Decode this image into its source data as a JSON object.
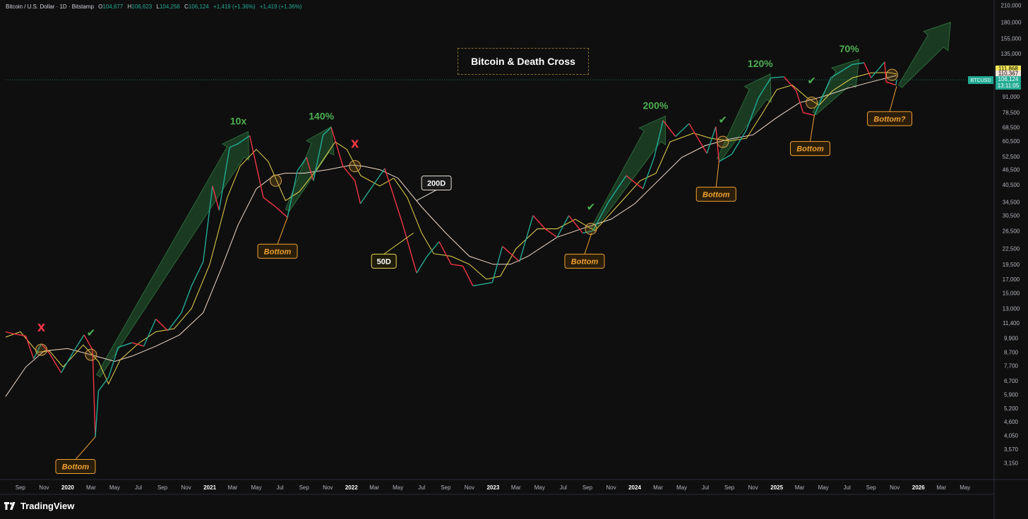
{
  "header": {
    "symbol": "Bitcoin / U.S. Dollar · 1D · Bitstamp",
    "open_label": "O",
    "open": "104,677",
    "high_label": "H",
    "high": "106,623",
    "low_label": "L",
    "low": "104,256",
    "close_label": "C",
    "close": "106,124",
    "change": "+1,419 (+1.36%)",
    "change2": "+1,419 (+1.36%)"
  },
  "chart_title": "Bitcoin & Death Cross",
  "brand": "TradingView",
  "price_tags": {
    "ma50": "111,868",
    "ma200": "110,367",
    "symbol": "BTCUSD",
    "last": "106,124",
    "countdown": "13:11:05"
  },
  "colors": {
    "background": "#0f0f0f",
    "ma50": "#e8d44d",
    "ma200": "#f2d9c9",
    "up": "#22ab94",
    "down": "#f23645",
    "annotation": "#f0a030",
    "gain": "#4caf50",
    "cross_x": "#f23645"
  },
  "chart_data": {
    "type": "line",
    "title": "Bitcoin & Death Cross",
    "y_scale": "log",
    "ylim": [
      3000,
      215000
    ],
    "y_ticks": [
      "210,000",
      "180,000",
      "155,000",
      "135,000",
      "115,000",
      "91,000",
      "78,500",
      "68,500",
      "60,500",
      "52,500",
      "46,500",
      "40,500",
      "34,500",
      "30,500",
      "26,500",
      "22,500",
      "19,500",
      "17,000",
      "15,000",
      "13,000",
      "11,400",
      "9,900",
      "8,700",
      "7,700",
      "6,700",
      "5,900",
      "5,200",
      "4,600",
      "4,050",
      "3,570",
      "3,150"
    ],
    "y_tick_values": [
      210000,
      180000,
      155000,
      135000,
      115000,
      91000,
      78500,
      68500,
      60500,
      52500,
      46500,
      40500,
      34500,
      30500,
      26500,
      22500,
      19500,
      17000,
      15000,
      13000,
      11400,
      9900,
      8700,
      7700,
      6700,
      5900,
      5200,
      4600,
      4050,
      3570,
      3150
    ],
    "x_ticks": [
      "Sep",
      "Nov",
      "2020",
      "Mar",
      "May",
      "Jul",
      "Sep",
      "Nov",
      "2021",
      "Mar",
      "May",
      "Jul",
      "Sep",
      "Nov",
      "2022",
      "Mar",
      "May",
      "Jul",
      "Sep",
      "Nov",
      "2023",
      "Mar",
      "May",
      "Jul",
      "Sep",
      "Nov",
      "2024",
      "Mar",
      "May",
      "Jul",
      "Sep",
      "Nov",
      "2025",
      "Mar",
      "May",
      "Jul",
      "Sep",
      "Nov",
      "2026",
      "Mar",
      "May"
    ],
    "x_tick_dates": [
      "2019-09-01",
      "2019-11-01",
      "2020-01-01",
      "2020-03-01",
      "2020-05-01",
      "2020-07-01",
      "2020-09-01",
      "2020-11-01",
      "2021-01-01",
      "2021-03-01",
      "2021-05-01",
      "2021-07-01",
      "2021-09-01",
      "2021-11-01",
      "2022-01-01",
      "2022-03-01",
      "2022-05-01",
      "2022-07-01",
      "2022-09-01",
      "2022-11-01",
      "2023-01-01",
      "2023-03-01",
      "2023-05-01",
      "2023-07-01",
      "2023-09-01",
      "2023-11-01",
      "2024-01-01",
      "2024-03-01",
      "2024-05-01",
      "2024-07-01",
      "2024-09-01",
      "2024-11-01",
      "2025-01-01",
      "2025-03-01",
      "2025-05-01",
      "2025-07-01",
      "2025-09-01",
      "2025-11-01",
      "2026-01-01",
      "2026-03-01",
      "2026-05-01"
    ],
    "xlim": [
      "2019-07-25",
      "2026-06-05"
    ],
    "series": [
      {
        "name": "Price",
        "points": [
          [
            "2019-07-25",
            10500
          ],
          [
            "2019-08-15",
            10300
          ],
          [
            "2019-09-15",
            10100
          ],
          [
            "2019-10-05",
            8200
          ],
          [
            "2019-10-25",
            9400
          ],
          [
            "2019-11-15",
            8600
          ],
          [
            "2019-12-15",
            7200
          ],
          [
            "2020-01-15",
            8700
          ],
          [
            "2020-02-12",
            10200
          ],
          [
            "2020-03-05",
            8900
          ],
          [
            "2020-03-12",
            4000
          ],
          [
            "2020-03-20",
            6100
          ],
          [
            "2020-04-15",
            6900
          ],
          [
            "2020-05-10",
            9100
          ],
          [
            "2020-06-15",
            9500
          ],
          [
            "2020-07-15",
            9200
          ],
          [
            "2020-08-15",
            11800
          ],
          [
            "2020-09-15",
            10600
          ],
          [
            "2020-10-20",
            12500
          ],
          [
            "2020-11-15",
            16000
          ],
          [
            "2020-12-15",
            20000
          ],
          [
            "2021-01-08",
            40000
          ],
          [
            "2021-01-25",
            32000
          ],
          [
            "2021-02-21",
            57000
          ],
          [
            "2021-03-15",
            59000
          ],
          [
            "2021-04-14",
            63500
          ],
          [
            "2021-05-19",
            36000
          ],
          [
            "2021-06-20",
            33000
          ],
          [
            "2021-07-20",
            30000
          ],
          [
            "2021-08-15",
            46000
          ],
          [
            "2021-09-07",
            52000
          ],
          [
            "2021-09-25",
            42000
          ],
          [
            "2021-10-20",
            64000
          ],
          [
            "2021-11-10",
            68500
          ],
          [
            "2021-12-10",
            48000
          ],
          [
            "2022-01-10",
            42000
          ],
          [
            "2022-01-24",
            34000
          ],
          [
            "2022-03-28",
            47000
          ],
          [
            "2022-05-12",
            28500
          ],
          [
            "2022-06-18",
            18000
          ],
          [
            "2022-07-15",
            21000
          ],
          [
            "2022-08-15",
            24000
          ],
          [
            "2022-09-15",
            19500
          ],
          [
            "2022-10-15",
            19200
          ],
          [
            "2022-11-10",
            16000
          ],
          [
            "2022-12-30",
            16500
          ],
          [
            "2023-01-25",
            23000
          ],
          [
            "2023-03-10",
            20000
          ],
          [
            "2023-04-14",
            30500
          ],
          [
            "2023-05-15",
            27000
          ],
          [
            "2023-06-15",
            25000
          ],
          [
            "2023-07-15",
            30500
          ],
          [
            "2023-08-20",
            26000
          ],
          [
            "2023-09-15",
            26500
          ],
          [
            "2023-10-25",
            34500
          ],
          [
            "2023-12-10",
            44000
          ],
          [
            "2024-01-22",
            39000
          ],
          [
            "2024-02-20",
            52000
          ],
          [
            "2024-03-14",
            73000
          ],
          [
            "2024-04-15",
            63000
          ],
          [
            "2024-05-20",
            71000
          ],
          [
            "2024-07-05",
            54000
          ],
          [
            "2024-07-28",
            69000
          ],
          [
            "2024-08-05",
            50000
          ],
          [
            "2024-09-07",
            53500
          ],
          [
            "2024-10-15",
            67000
          ],
          [
            "2024-11-15",
            90000
          ],
          [
            "2024-12-17",
            108000
          ],
          [
            "2025-01-20",
            109000
          ],
          [
            "2025-02-20",
            96000
          ],
          [
            "2025-03-10",
            78500
          ],
          [
            "2025-04-08",
            76500
          ],
          [
            "2025-05-20",
            108000
          ],
          [
            "2025-07-14",
            122000
          ],
          [
            "2025-08-14",
            124000
          ],
          [
            "2025-09-01",
            108000
          ],
          [
            "2025-10-06",
            125000
          ],
          [
            "2025-10-10",
            104000
          ],
          [
            "2025-11-04",
            101000
          ],
          [
            "2025-11-06",
            106124
          ]
        ]
      },
      {
        "name": "50D",
        "points": [
          [
            "2019-07-25",
            10000
          ],
          [
            "2019-09-01",
            10500
          ],
          [
            "2019-10-15",
            8700
          ],
          [
            "2019-11-15",
            8800
          ],
          [
            "2019-12-20",
            7600
          ],
          [
            "2020-02-10",
            9300
          ],
          [
            "2020-03-20",
            8000
          ],
          [
            "2020-04-15",
            6500
          ],
          [
            "2020-05-15",
            8100
          ],
          [
            "2020-06-30",
            9400
          ],
          [
            "2020-08-15",
            10500
          ],
          [
            "2020-10-01",
            10800
          ],
          [
            "2020-11-15",
            13000
          ],
          [
            "2021-01-01",
            19500
          ],
          [
            "2021-02-15",
            36000
          ],
          [
            "2021-03-20",
            48000
          ],
          [
            "2021-05-01",
            56000
          ],
          [
            "2021-06-01",
            50000
          ],
          [
            "2021-07-15",
            35000
          ],
          [
            "2021-08-20",
            38000
          ],
          [
            "2021-10-01",
            46000
          ],
          [
            "2021-11-20",
            60000
          ],
          [
            "2021-12-20",
            56000
          ],
          [
            "2022-01-25",
            44000
          ],
          [
            "2022-03-15",
            40000
          ],
          [
            "2022-04-20",
            43000
          ],
          [
            "2022-05-25",
            36000
          ],
          [
            "2022-07-01",
            26000
          ],
          [
            "2022-08-01",
            21500
          ],
          [
            "2022-09-15",
            21000
          ],
          [
            "2022-11-01",
            19500
          ],
          [
            "2022-12-15",
            17000
          ],
          [
            "2023-01-20",
            17500
          ],
          [
            "2023-03-01",
            22500
          ],
          [
            "2023-04-25",
            27000
          ],
          [
            "2023-06-15",
            27000
          ],
          [
            "2023-08-01",
            29500
          ],
          [
            "2023-09-20",
            26500
          ],
          [
            "2023-11-15",
            33000
          ],
          [
            "2024-01-15",
            42000
          ],
          [
            "2024-02-25",
            45000
          ],
          [
            "2024-04-01",
            60000
          ],
          [
            "2024-06-01",
            65000
          ],
          [
            "2024-07-15",
            62000
          ],
          [
            "2024-09-01",
            60500
          ],
          [
            "2024-10-15",
            62000
          ],
          [
            "2024-11-25",
            78000
          ],
          [
            "2025-01-01",
            97000
          ],
          [
            "2025-02-10",
            101000
          ],
          [
            "2025-03-20",
            90000
          ],
          [
            "2025-04-20",
            84000
          ],
          [
            "2025-05-25",
            96000
          ],
          [
            "2025-07-15",
            108000
          ],
          [
            "2025-09-01",
            113000
          ],
          [
            "2025-10-15",
            113500
          ],
          [
            "2025-11-06",
            111868
          ]
        ]
      },
      {
        "name": "200D",
        "points": [
          [
            "2019-07-25",
            5800
          ],
          [
            "2019-09-15",
            7600
          ],
          [
            "2019-11-01",
            8800
          ],
          [
            "2020-01-01",
            9000
          ],
          [
            "2020-03-01",
            8500
          ],
          [
            "2020-05-01",
            8000
          ],
          [
            "2020-06-15",
            8400
          ],
          [
            "2020-08-15",
            9200
          ],
          [
            "2020-10-15",
            10200
          ],
          [
            "2020-12-15",
            12500
          ],
          [
            "2021-02-01",
            19000
          ],
          [
            "2021-03-15",
            28000
          ],
          [
            "2021-05-01",
            39000
          ],
          [
            "2021-06-15",
            44000
          ],
          [
            "2021-07-15",
            45000
          ],
          [
            "2021-09-01",
            45000
          ],
          [
            "2021-11-01",
            46500
          ],
          [
            "2022-01-01",
            48500
          ],
          [
            "2022-02-01",
            48000
          ],
          [
            "2022-03-15",
            46500
          ],
          [
            "2022-05-01",
            43000
          ],
          [
            "2022-07-01",
            33000
          ],
          [
            "2022-09-01",
            26000
          ],
          [
            "2022-11-01",
            21000
          ],
          [
            "2023-01-01",
            19500
          ],
          [
            "2023-02-15",
            19500
          ],
          [
            "2023-04-01",
            21000
          ],
          [
            "2023-06-15",
            25000
          ],
          [
            "2023-09-01",
            27500
          ],
          [
            "2023-11-01",
            29500
          ],
          [
            "2024-01-01",
            34000
          ],
          [
            "2024-03-01",
            42000
          ],
          [
            "2024-05-01",
            52000
          ],
          [
            "2024-07-01",
            58000
          ],
          [
            "2024-09-01",
            61500
          ],
          [
            "2024-11-01",
            64000
          ],
          [
            "2025-01-01",
            75000
          ],
          [
            "2025-03-01",
            86000
          ],
          [
            "2025-05-01",
            91000
          ],
          [
            "2025-07-01",
            98000
          ],
          [
            "2025-09-01",
            104000
          ],
          [
            "2025-11-06",
            110367
          ]
        ]
      }
    ],
    "arrows": [
      {
        "from": [
          "2020-03-20",
          7000
        ],
        "to": [
          "2021-04-10",
          66000
        ],
        "label": "10x"
      },
      {
        "from": [
          "2021-07-20",
          32000
        ],
        "to": [
          "2021-11-10",
          69000
        ],
        "label": "140%"
      },
      {
        "from": [
          "2023-09-15",
          27000
        ],
        "to": [
          "2024-03-20",
          76000
        ],
        "label": "200%"
      },
      {
        "from": [
          "2024-08-05",
          51000
        ],
        "to": [
          "2024-12-15",
          112000
        ],
        "label": "120%"
      },
      {
        "from": [
          "2025-04-08",
          78000
        ],
        "to": [
          "2025-08-01",
          128000
        ],
        "label": "70%"
      },
      {
        "from": [
          "2025-11-15",
          100000
        ],
        "to": [
          "2026-03-25",
          180000
        ],
        "label": ""
      }
    ],
    "crosses": [
      {
        "date": "2019-10-25",
        "price": 8900,
        "type": "death",
        "mark": "X"
      },
      {
        "date": "2020-03-01",
        "price": 8500,
        "type": "golden",
        "mark": "✔"
      },
      {
        "date": "2021-06-20",
        "price": 42000,
        "type": "death",
        "mark": ""
      },
      {
        "date": "2022-01-10",
        "price": 48000,
        "type": "death",
        "mark": "X"
      },
      {
        "date": "2023-09-10",
        "price": 27000,
        "type": "golden",
        "mark": "✔"
      },
      {
        "date": "2024-08-15",
        "price": 60000,
        "type": "golden",
        "mark": "✔"
      },
      {
        "date": "2025-04-01",
        "price": 86000,
        "type": "golden",
        "mark": "✔"
      },
      {
        "date": "2025-10-25",
        "price": 111000,
        "type": "death",
        "mark": ""
      }
    ],
    "annotations": [
      {
        "text": "Bottom",
        "at": [
          "2020-03-12",
          4000
        ]
      },
      {
        "text": "Bottom",
        "at": [
          "2021-07-20",
          30000
        ]
      },
      {
        "text": "Bottom",
        "at": [
          "2023-09-12",
          26000
        ]
      },
      {
        "text": "Bottom",
        "at": [
          "2024-08-05",
          50000
        ]
      },
      {
        "text": "Bottom",
        "at": [
          "2025-04-08",
          77000
        ]
      },
      {
        "text": "Bottom?",
        "at": [
          "2025-11-06",
          100000
        ]
      },
      {
        "text": "200D",
        "at": [
          "2022-06-18",
          35000
        ]
      },
      {
        "text": "50D",
        "at": [
          "2022-06-10",
          26000
        ]
      }
    ]
  }
}
